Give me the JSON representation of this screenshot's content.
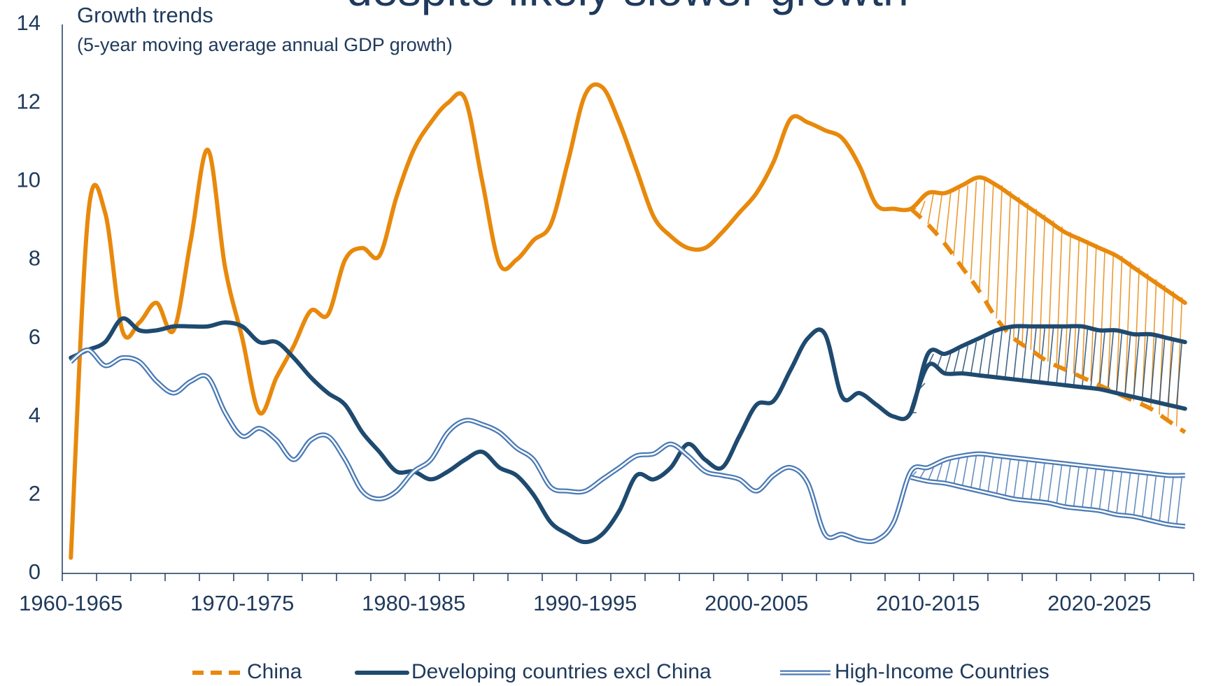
{
  "chart_data": {
    "type": "line",
    "heading": "despite likely slower growth",
    "title": "Growth trends",
    "subtitle": "(5-year moving average annual GDP growth)",
    "categories": [
      "1960-1965",
      null,
      null,
      null,
      null,
      null,
      null,
      null,
      null,
      null,
      "1970-1975",
      null,
      null,
      null,
      null,
      null,
      null,
      null,
      null,
      null,
      "1980-1985",
      null,
      null,
      null,
      null,
      null,
      null,
      null,
      null,
      null,
      "1990-1995",
      null,
      null,
      null,
      null,
      null,
      null,
      null,
      null,
      null,
      "2000-2005",
      null,
      null,
      null,
      null,
      null,
      null,
      null,
      null,
      null,
      "2010-2015",
      null,
      null,
      null,
      null,
      null,
      null,
      null,
      null,
      null,
      "2020-2025",
      null,
      null,
      null,
      null,
      null
    ],
    "ylim": [
      0,
      14
    ],
    "yticks": [
      0,
      2,
      4,
      6,
      8,
      10,
      12,
      14
    ],
    "grid": false,
    "legend": "bottom",
    "series": [
      {
        "name": "China",
        "color": "#e8890c",
        "legend_style": "dashed",
        "values": [
          0.4,
          9.1,
          9.2,
          6.2,
          6.4,
          6.9,
          6.2,
          8.5,
          10.8,
          7.8,
          6.0,
          4.1,
          5.0,
          5.8,
          6.7,
          6.6,
          8.0,
          8.3,
          8.1,
          9.6,
          10.8,
          11.5,
          12.0,
          12.1,
          10.0,
          7.9,
          8.0,
          8.5,
          8.9,
          10.5,
          12.2,
          12.4,
          11.5,
          10.3,
          9.1,
          8.6,
          8.3,
          8.3,
          8.7,
          9.2,
          9.7,
          10.5,
          11.6,
          11.5,
          11.3,
          11.1,
          10.4,
          9.4,
          9.3,
          9.3,
          9.7,
          9.7,
          9.9,
          10.1,
          9.9,
          9.6,
          9.3,
          9.0,
          8.7,
          8.5,
          8.3,
          8.1,
          7.8,
          7.5,
          7.2,
          6.9
        ]
      },
      {
        "color": "#e8890c",
        "style": "dashed",
        "band_of": 0,
        "values": [
          null,
          null,
          null,
          null,
          null,
          null,
          null,
          null,
          null,
          null,
          null,
          null,
          null,
          null,
          null,
          null,
          null,
          null,
          null,
          null,
          null,
          null,
          null,
          null,
          null,
          null,
          null,
          null,
          null,
          null,
          null,
          null,
          null,
          null,
          null,
          null,
          null,
          null,
          null,
          null,
          null,
          null,
          null,
          null,
          null,
          null,
          null,
          null,
          null,
          9.3,
          8.9,
          8.4,
          7.8,
          7.2,
          6.5,
          6.0,
          5.7,
          5.4,
          5.2,
          5.0,
          4.8,
          4.6,
          4.4,
          4.2,
          3.9,
          3.6
        ]
      },
      {
        "name": "Developing countries excl China",
        "color": "#1f4a70",
        "legend_style": "solid",
        "values": [
          5.5,
          5.7,
          5.9,
          6.5,
          6.2,
          6.2,
          6.3,
          6.3,
          6.3,
          6.4,
          6.3,
          5.9,
          5.9,
          5.5,
          5.0,
          4.6,
          4.3,
          3.6,
          3.1,
          2.6,
          2.6,
          2.4,
          2.6,
          2.9,
          3.1,
          2.7,
          2.5,
          2.0,
          1.3,
          1.0,
          0.8,
          1.0,
          1.6,
          2.5,
          2.4,
          2.7,
          3.3,
          2.9,
          2.7,
          3.5,
          4.3,
          4.4,
          5.2,
          6.0,
          6.1,
          4.5,
          4.6,
          4.3,
          4.0,
          4.1,
          5.6,
          5.6,
          5.8,
          6.0,
          6.2,
          6.3,
          6.3,
          6.3,
          6.3,
          6.3,
          6.2,
          6.2,
          6.1,
          6.1,
          6.0,
          5.9
        ]
      },
      {
        "color": "#1f4a70",
        "style": "solid",
        "band_of": 2,
        "values": [
          null,
          null,
          null,
          null,
          null,
          null,
          null,
          null,
          null,
          null,
          null,
          null,
          null,
          null,
          null,
          null,
          null,
          null,
          null,
          null,
          null,
          null,
          null,
          null,
          null,
          null,
          null,
          null,
          null,
          null,
          null,
          null,
          null,
          null,
          null,
          null,
          null,
          null,
          null,
          null,
          null,
          null,
          null,
          null,
          null,
          null,
          null,
          null,
          null,
          4.1,
          5.3,
          5.1,
          5.1,
          5.05,
          5.0,
          4.95,
          4.9,
          4.85,
          4.8,
          4.75,
          4.7,
          4.6,
          4.5,
          4.4,
          4.3,
          4.2
        ]
      },
      {
        "name": "High-Income Countries",
        "color": "#4a7ab5",
        "legend_style": "double",
        "values": [
          5.4,
          5.7,
          5.3,
          5.5,
          5.4,
          4.9,
          4.6,
          4.9,
          5.0,
          4.1,
          3.5,
          3.7,
          3.4,
          2.9,
          3.4,
          3.5,
          2.9,
          2.1,
          1.9,
          2.1,
          2.6,
          2.9,
          3.6,
          3.9,
          3.8,
          3.6,
          3.2,
          2.9,
          2.2,
          2.1,
          2.1,
          2.4,
          2.7,
          3.0,
          3.05,
          3.3,
          3.0,
          2.6,
          2.5,
          2.4,
          2.1,
          2.5,
          2.7,
          2.3,
          1.0,
          1.0,
          0.85,
          0.85,
          1.3,
          2.6,
          2.7,
          2.9,
          3.0,
          3.05,
          3.0,
          2.95,
          2.9,
          2.85,
          2.8,
          2.75,
          2.7,
          2.65,
          2.6,
          2.55,
          2.5,
          2.5
        ]
      },
      {
        "color": "#4a7ab5",
        "style": "double",
        "band_of": 4,
        "values": [
          null,
          null,
          null,
          null,
          null,
          null,
          null,
          null,
          null,
          null,
          null,
          null,
          null,
          null,
          null,
          null,
          null,
          null,
          null,
          null,
          null,
          null,
          null,
          null,
          null,
          null,
          null,
          null,
          null,
          null,
          null,
          null,
          null,
          null,
          null,
          null,
          null,
          null,
          null,
          null,
          null,
          null,
          null,
          null,
          null,
          null,
          null,
          null,
          null,
          2.45,
          2.35,
          2.3,
          2.2,
          2.1,
          2.0,
          1.9,
          1.85,
          1.8,
          1.7,
          1.65,
          1.6,
          1.5,
          1.45,
          1.35,
          1.25,
          1.2
        ]
      }
    ]
  }
}
